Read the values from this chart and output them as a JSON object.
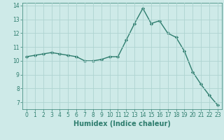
{
  "x": [
    0,
    1,
    2,
    3,
    4,
    5,
    6,
    7,
    8,
    9,
    10,
    11,
    12,
    13,
    14,
    15,
    16,
    17,
    18,
    19,
    20,
    21,
    22,
    23
  ],
  "y": [
    10.3,
    10.4,
    10.5,
    10.6,
    10.5,
    10.4,
    10.3,
    10.0,
    10.0,
    10.1,
    10.3,
    10.3,
    11.5,
    12.7,
    13.8,
    12.7,
    12.9,
    12.0,
    11.7,
    10.7,
    9.2,
    8.3,
    7.5,
    6.8
  ],
  "line_color": "#2e7d6e",
  "marker": "D",
  "marker_size": 2.2,
  "bg_color": "#ceeae8",
  "grid_color": "#aed4d1",
  "xlabel": "Humidex (Indice chaleur)",
  "xlabel_fontsize": 7,
  "ylim": [
    6.5,
    14.2
  ],
  "xlim": [
    -0.5,
    23.5
  ],
  "yticks": [
    7,
    8,
    9,
    10,
    11,
    12,
    13,
    14
  ],
  "xticks": [
    0,
    1,
    2,
    3,
    4,
    5,
    6,
    7,
    8,
    9,
    10,
    11,
    12,
    13,
    14,
    15,
    16,
    17,
    18,
    19,
    20,
    21,
    22,
    23
  ],
  "tick_fontsize": 5.5,
  "line_width": 1.0
}
